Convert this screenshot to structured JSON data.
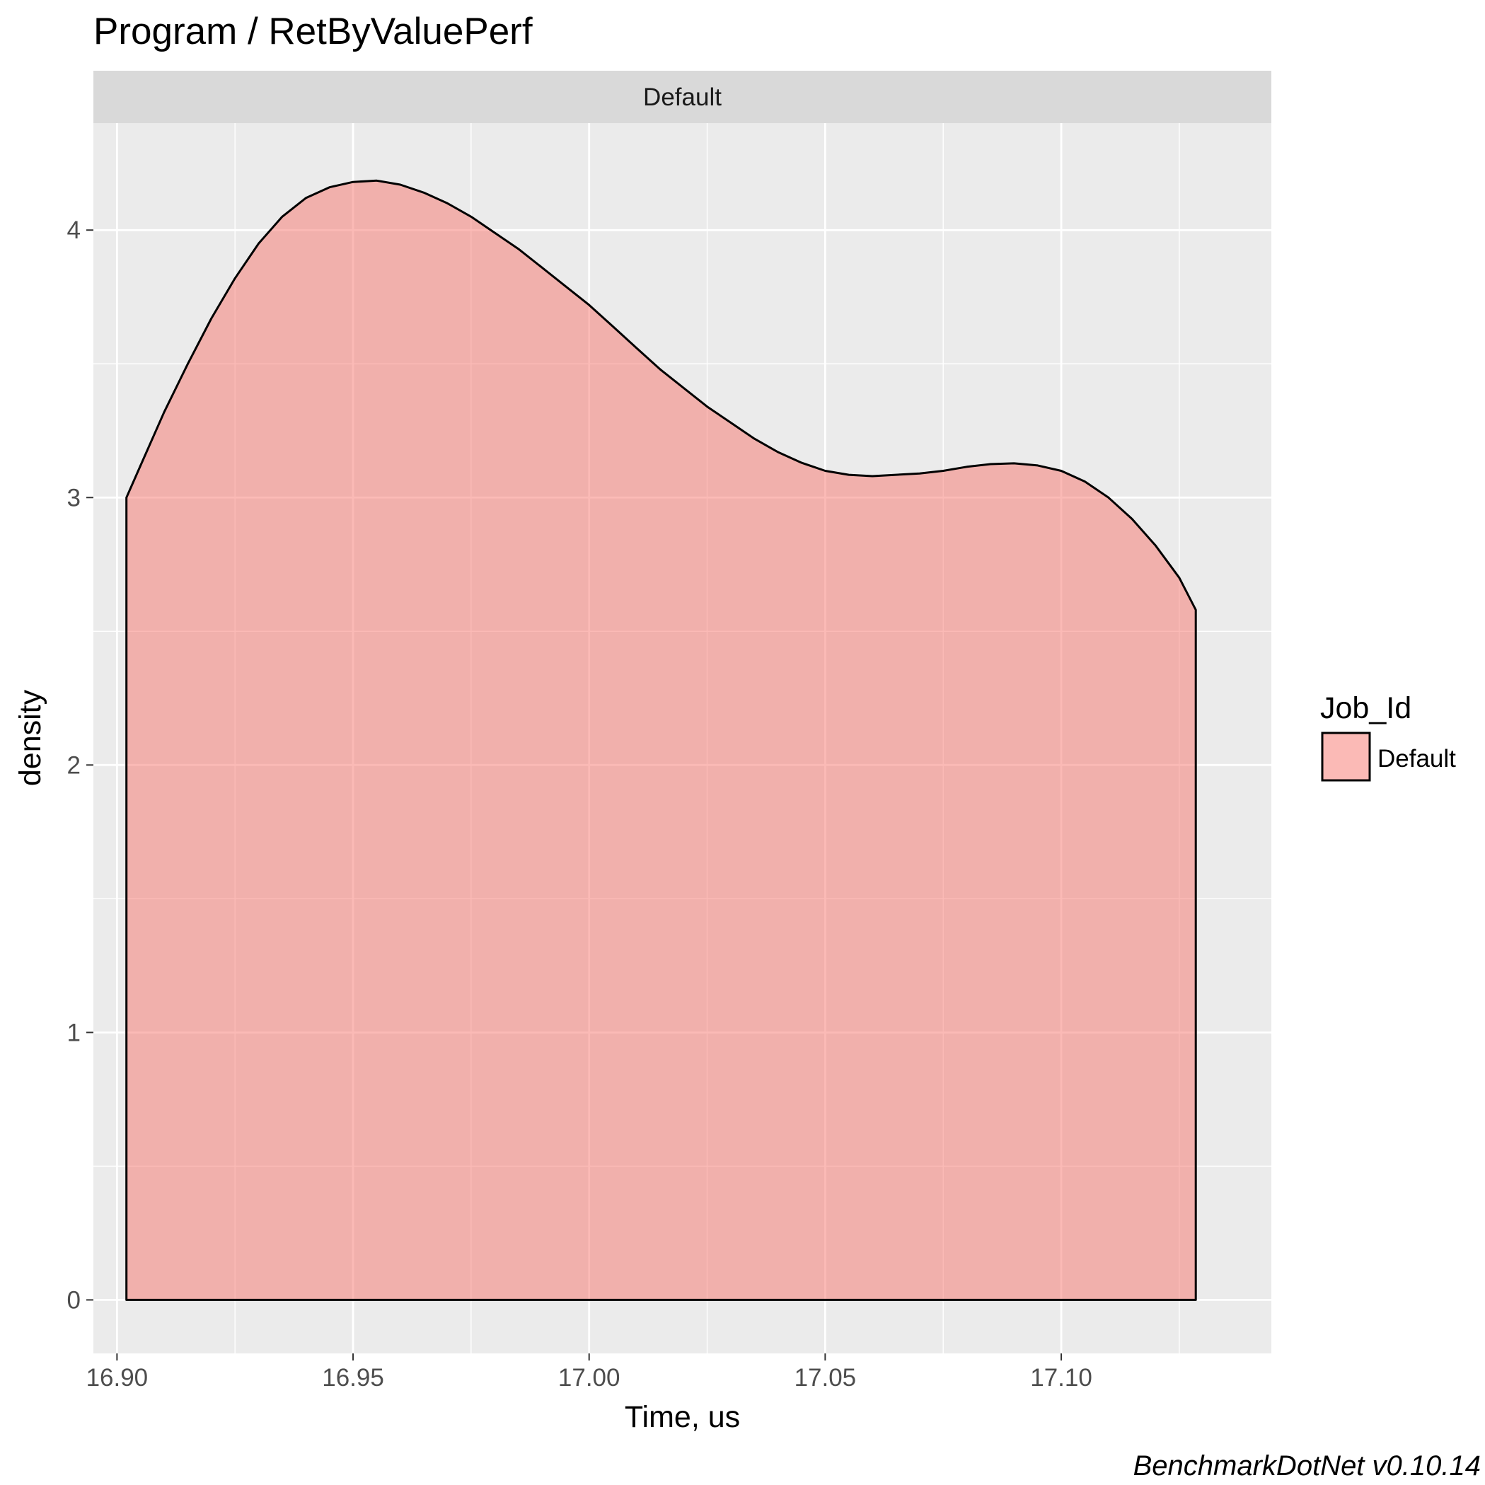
{
  "chart_data": {
    "type": "area",
    "title": "Program / RetByValuePerf",
    "facet_label": "Default",
    "xlabel": "Time, us",
    "ylabel": "density",
    "caption": "BenchmarkDotNet v0.10.14",
    "xlim": [
      16.895,
      17.1445
    ],
    "ylim": [
      -0.2,
      4.4
    ],
    "x_ticks": [
      16.9,
      16.95,
      17.0,
      17.05,
      17.1
    ],
    "x_tick_labels": [
      "16.90",
      "16.95",
      "17.00",
      "17.05",
      "17.10"
    ],
    "y_ticks": [
      0,
      1,
      2,
      3,
      4
    ],
    "y_tick_labels": [
      "0",
      "1",
      "2",
      "3",
      "4"
    ],
    "grid": true,
    "legend": {
      "title": "Job_Id",
      "position": "right",
      "entries": [
        {
          "label": "Default",
          "color": "#F8766D"
        }
      ]
    },
    "series": [
      {
        "name": "Default",
        "fill": "#F8766D",
        "fill_opacity": 0.5,
        "stroke": "#000000",
        "x": [
          16.902,
          16.905,
          16.91,
          16.915,
          16.92,
          16.925,
          16.93,
          16.935,
          16.94,
          16.945,
          16.95,
          16.955,
          16.96,
          16.965,
          16.97,
          16.975,
          16.98,
          16.985,
          16.99,
          16.995,
          17.0,
          17.005,
          17.01,
          17.015,
          17.02,
          17.025,
          17.03,
          17.035,
          17.04,
          17.045,
          17.05,
          17.055,
          17.06,
          17.065,
          17.07,
          17.075,
          17.08,
          17.085,
          17.09,
          17.095,
          17.1,
          17.105,
          17.11,
          17.115,
          17.12,
          17.125,
          17.1285
        ],
        "y": [
          3.0,
          3.12,
          3.32,
          3.5,
          3.67,
          3.82,
          3.95,
          4.05,
          4.12,
          4.16,
          4.18,
          4.185,
          4.17,
          4.14,
          4.1,
          4.05,
          3.99,
          3.93,
          3.86,
          3.79,
          3.72,
          3.64,
          3.56,
          3.48,
          3.41,
          3.34,
          3.28,
          3.22,
          3.17,
          3.13,
          3.1,
          3.085,
          3.08,
          3.085,
          3.09,
          3.1,
          3.115,
          3.125,
          3.128,
          3.12,
          3.1,
          3.06,
          3.0,
          2.92,
          2.82,
          2.7,
          2.58
        ]
      }
    ]
  }
}
